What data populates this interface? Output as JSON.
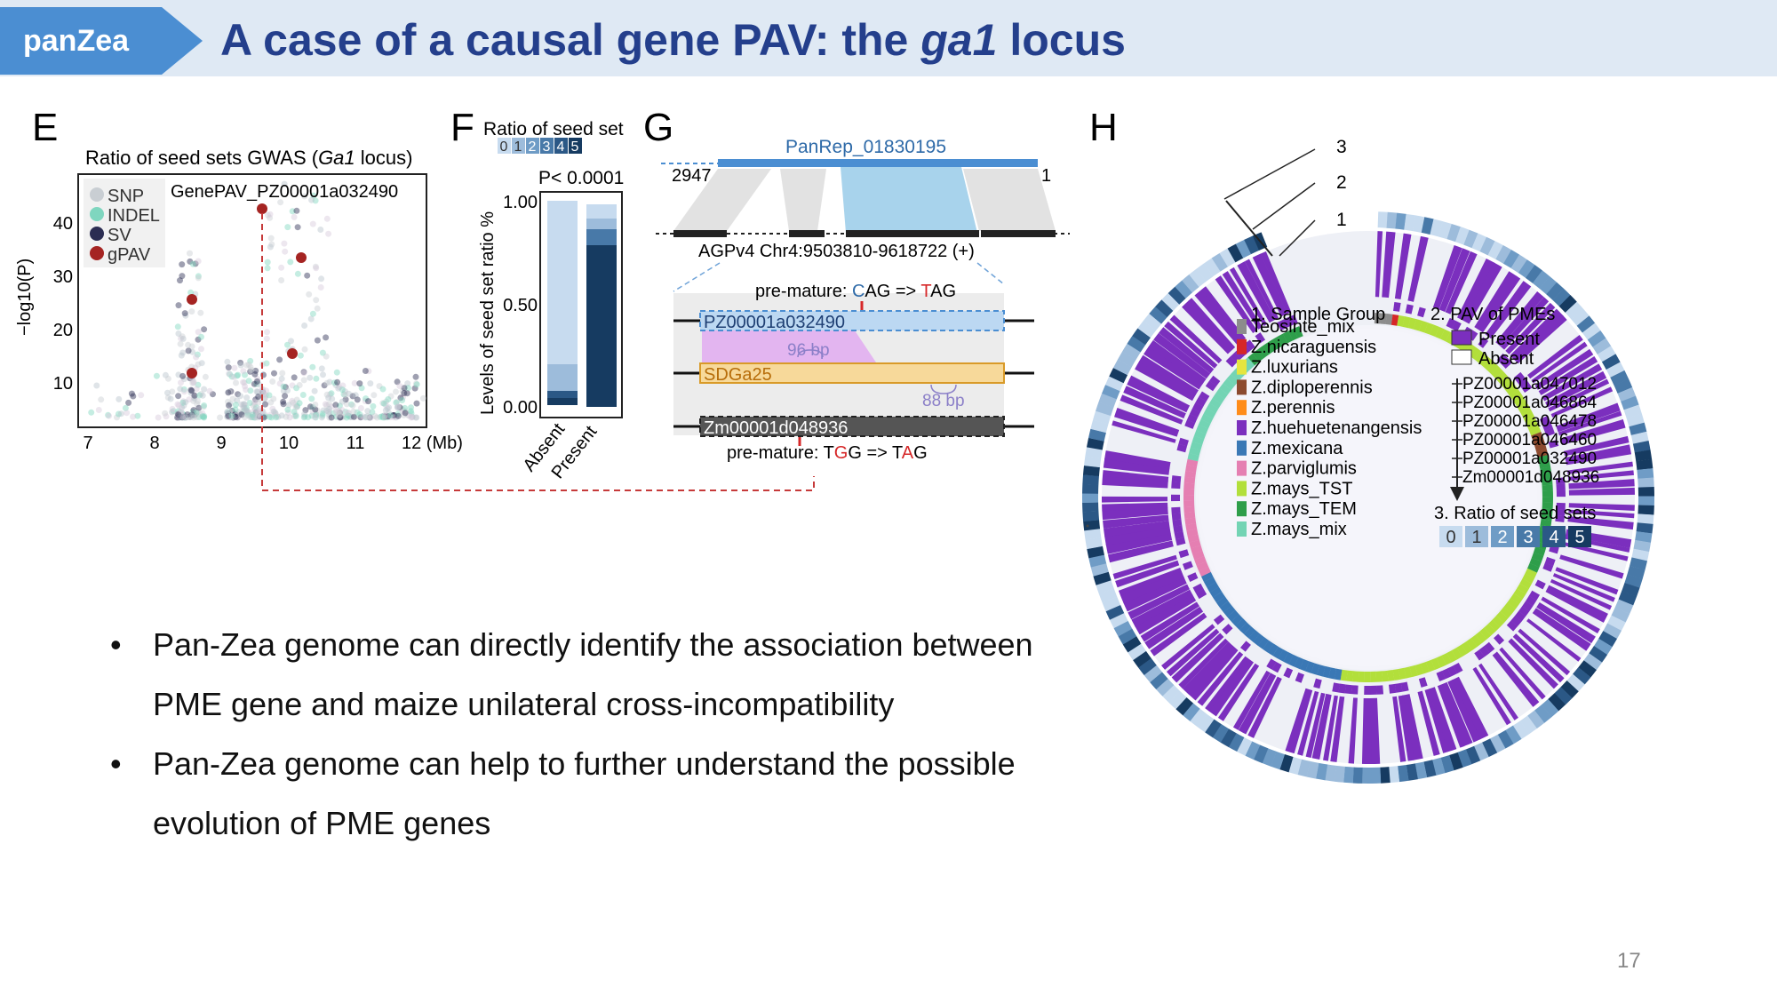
{
  "header": {
    "tag": "panZea",
    "title_pre": "A case of a causal gene PAV: the ",
    "title_em": "ga1",
    "title_post": " locus"
  },
  "panel_E": {
    "letter": "E",
    "title_pre": "Ratio of seed sets GWAS (",
    "title_em": "Ga1",
    "title_post": " locus)",
    "gene_label": "GenePAV_PZ00001a032490",
    "ylabel": "−log10(P)",
    "xticks": [
      "7",
      "8",
      "9",
      "10",
      "11",
      "12 (Mb)"
    ],
    "yticks": [
      "10",
      "20",
      "30",
      "40"
    ],
    "legend": [
      "SNP",
      "INDEL",
      "SV",
      "gPAV"
    ]
  },
  "panel_F": {
    "letter": "F",
    "legend_title": "Ratio of seed set",
    "legend_levels": [
      "0",
      "1",
      "2",
      "3",
      "4",
      "5"
    ],
    "pvalue": "P< 0.0001",
    "ylabel": "Levels of seed set ratio %",
    "yticks": [
      "0.00",
      "0.50",
      "1.00"
    ],
    "categories": [
      "Absent",
      "Present"
    ]
  },
  "panel_G": {
    "letter": "G",
    "panrep": "PanRep_01830195",
    "left_coord": "2947",
    "right_coord": "1",
    "region": "AGPv4 Chr4:9503810-9618722 (+)",
    "mut1_pre": "pre-mature: ",
    "mut1_a": "C",
    "mut1_mid": "AG => ",
    "mut1_b": "T",
    "mut1_post": "AG",
    "gene1": "PZ00001a032490",
    "gene2": "SDGa25",
    "gene3": "Zm00001d048936",
    "bp1": "96 bp",
    "bp2": "88 bp",
    "mut2_pre": "pre-mature: T",
    "mut2_a": "G",
    "mut2_mid": "G => T",
    "mut2_b": "A",
    "mut2_post": "G"
  },
  "panel_H": {
    "letter": "H",
    "rings": [
      "3",
      "2",
      "1"
    ],
    "group_title": "1. Sample Group",
    "groups": [
      "Teosinte_mix",
      "Z.nicaraguensis",
      "Z.luxurians",
      "Z.diploperennis",
      "Z.perennis",
      "Z.huehuetenangensis",
      "Z.mexicana",
      "Z.parviglumis",
      "Z.mays_TST",
      "Z.mays_TEM",
      "Z.mays_mix"
    ],
    "pav_title": "2. PAV of PMEs",
    "pav_present": "Present",
    "pav_absent": "Absent",
    "pav_genes": [
      "PZ00001a047012",
      "PZ00001a046864",
      "PZ00001a046478",
      "PZ00001a046460",
      "PZ00001a032490",
      "Zm00001d048936"
    ],
    "ratio_title": "3. Ratio of seed sets",
    "ratio_levels": [
      "0",
      "1",
      "2",
      "3",
      "4",
      "5"
    ]
  },
  "colors": {
    "accent": "#4b8ed2",
    "title": "#243f8c",
    "pav": "#7b2fbe",
    "levels": [
      "#c7dbef",
      "#9dbcdb",
      "#6f9cc6",
      "#4879a8",
      "#2b5886",
      "#163b61"
    ],
    "groups": [
      "#8c8c8c",
      "#d62728",
      "#e5e540",
      "#8c4a2f",
      "#ff8c1a",
      "#7b2fbe",
      "#3a78b5",
      "#e57fb2",
      "#b2df3b",
      "#2e9e4a",
      "#73d4b4"
    ]
  },
  "bullets": [
    "Pan-Zea genome can directly identify the association between PME gene and maize unilateral cross-incompatibility",
    "Pan-Zea genome can help to further understand the possible evolution of PME genes"
  ],
  "page_number": "17"
}
